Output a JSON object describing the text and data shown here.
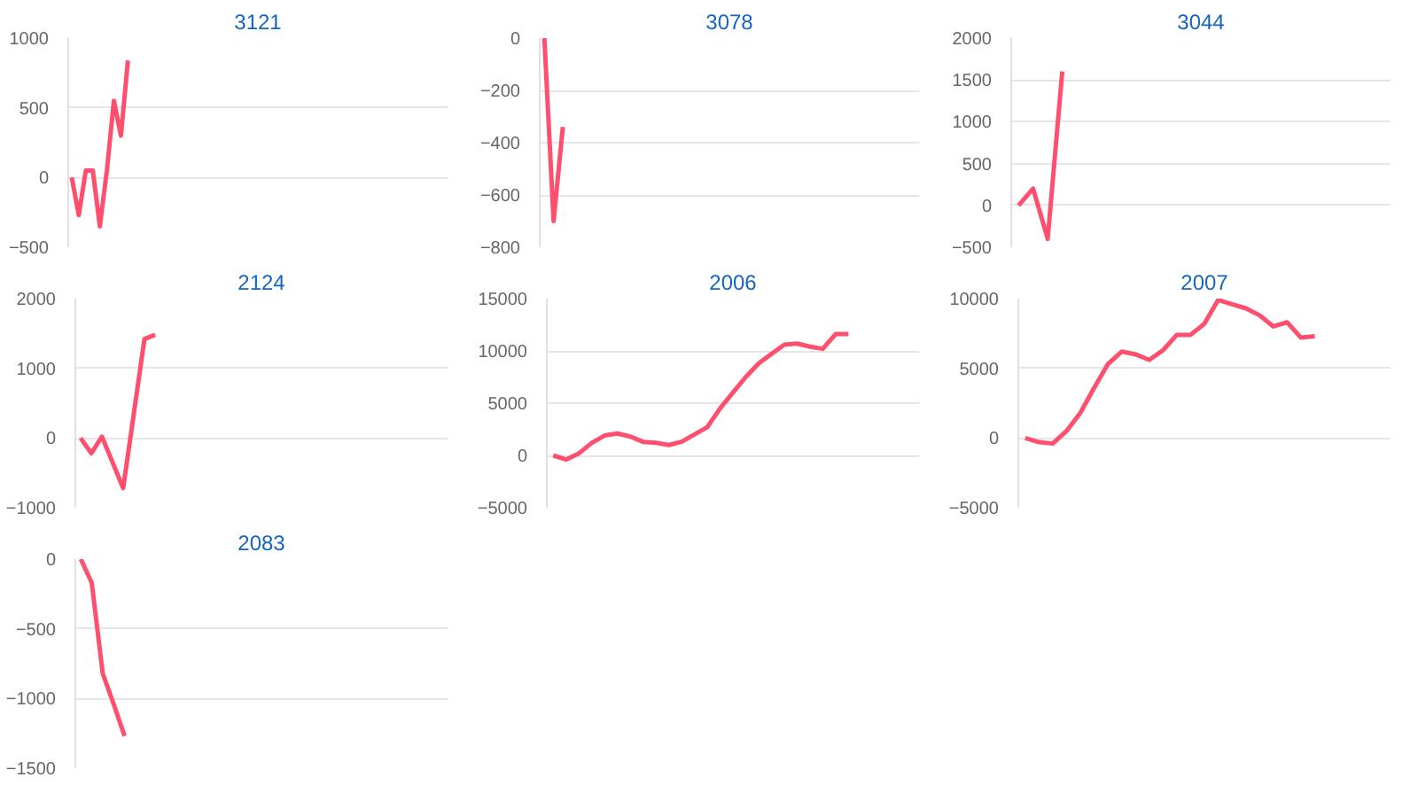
{
  "chart_data": [
    {
      "type": "line",
      "title": "3121",
      "categories": [
        null,
        null,
        null,
        null,
        null,
        null,
        null,
        null,
        null,
        null,
        null,
        null,
        null,
        null,
        null,
        null,
        null,
        null,
        null,
        null,
        null,
        null,
        null,
        null,
        null,
        null,
        null,
        null,
        null,
        null,
        null,
        null,
        null,
        null,
        null,
        null,
        null,
        null,
        null,
        null,
        null,
        null,
        null,
        null,
        null,
        null,
        null,
        null,
        null,
        null,
        null,
        null,
        null,
        null
      ],
      "series": [
        {
          "color": "#ff4f6e",
          "values": [
            0,
            -270,
            50,
            50,
            -350,
            50,
            550,
            300,
            840,
            null,
            null,
            null,
            null,
            null,
            null,
            null,
            null,
            null,
            null,
            null,
            null,
            null,
            null,
            null,
            null,
            null,
            null,
            null,
            null,
            null,
            null,
            null,
            null,
            null,
            null,
            null,
            null,
            null,
            null,
            null,
            null,
            null,
            null,
            null,
            null,
            null,
            null,
            null,
            null,
            null,
            null,
            null,
            null,
            null
          ]
        }
      ],
      "ylim": [
        -500,
        1000
      ],
      "yticks": [
        -500,
        0,
        500,
        1000
      ],
      "grid": "y",
      "tick_labels": "y"
    },
    {
      "type": "line",
      "title": "3078",
      "categories": [
        null,
        null,
        null,
        null,
        null,
        null,
        null,
        null,
        null,
        null,
        null,
        null,
        null,
        null,
        null,
        null,
        null,
        null,
        null,
        null,
        null,
        null,
        null,
        null,
        null,
        null,
        null,
        null,
        null,
        null,
        null,
        null,
        null,
        null,
        null,
        null,
        null,
        null,
        null,
        null,
        null
      ],
      "series": [
        {
          "color": "#ff4f6e",
          "values": [
            0,
            -700,
            -340,
            null,
            null,
            null,
            null,
            null,
            null,
            null,
            null,
            null,
            null,
            null,
            null,
            null,
            null,
            null,
            null,
            null,
            null,
            null,
            null,
            null,
            null,
            null,
            null,
            null,
            null,
            null,
            null,
            null,
            null,
            null,
            null,
            null,
            null,
            null,
            null,
            null,
            null
          ]
        }
      ],
      "ylim": [
        -800,
        0
      ],
      "yticks": [
        -800,
        -600,
        -400,
        -200,
        0
      ],
      "grid": "y",
      "tick_labels": "y"
    },
    {
      "type": "line",
      "title": "3044",
      "categories": [
        null,
        null,
        null,
        null,
        null,
        null,
        null,
        null,
        null,
        null,
        null,
        null,
        null,
        null,
        null,
        null,
        null,
        null,
        null,
        null,
        null,
        null,
        null,
        null,
        null,
        null
      ],
      "series": [
        {
          "color": "#ff4f6e",
          "values": [
            0,
            200,
            -400,
            1600,
            null,
            null,
            null,
            null,
            null,
            null,
            null,
            null,
            null,
            null,
            null,
            null,
            null,
            null,
            null,
            null,
            null,
            null,
            null,
            null,
            null,
            null
          ]
        }
      ],
      "ylim": [
        -500,
        2000
      ],
      "yticks": [
        -500,
        0,
        500,
        1000,
        1500,
        2000
      ],
      "grid": "y",
      "tick_labels": "y"
    },
    {
      "type": "line",
      "title": "2124",
      "categories": [
        null,
        null,
        null,
        null,
        null,
        null,
        null,
        null,
        null,
        null,
        null,
        null,
        null,
        null,
        null,
        null,
        null,
        null,
        null,
        null,
        null,
        null,
        null,
        null,
        null,
        null,
        null,
        null,
        null,
        null,
        null,
        null,
        null,
        null,
        null
      ],
      "series": [
        {
          "color": "#ff4f6e",
          "values": [
            0,
            -220,
            20,
            -350,
            -720,
            350,
            1420,
            1480,
            null,
            null,
            null,
            null,
            null,
            null,
            null,
            null,
            null,
            null,
            null,
            null,
            null,
            null,
            null,
            null,
            null,
            null,
            null,
            null,
            null,
            null,
            null,
            null,
            null,
            null,
            null
          ]
        }
      ],
      "ylim": [
        -1000,
        2000
      ],
      "yticks": [
        -1000,
        0,
        1000,
        2000
      ],
      "grid": "y",
      "tick_labels": "y"
    },
    {
      "type": "line",
      "title": "2006",
      "categories": [
        null,
        null,
        null,
        null,
        null,
        null,
        null,
        null,
        null,
        null,
        null,
        null,
        null,
        null,
        null,
        null,
        null,
        null,
        null,
        null,
        null,
        null,
        null,
        null,
        null,
        null,
        null,
        null,
        null
      ],
      "series": [
        {
          "color": "#ff4f6e",
          "values": [
            0,
            -400,
            200,
            1200,
            1900,
            2100,
            1800,
            1300,
            1200,
            1000,
            1300,
            2000,
            2700,
            4500,
            6000,
            7500,
            8800,
            9700,
            10600,
            10700,
            10400,
            10200,
            11600,
            11600,
            null,
            null,
            null,
            null,
            null
          ]
        }
      ],
      "ylim": [
        -5000,
        15000
      ],
      "yticks": [
        -5000,
        0,
        5000,
        10000,
        15000
      ],
      "grid": "y",
      "tick_labels": "y"
    },
    {
      "type": "line",
      "title": "2007",
      "categories": [
        null,
        null,
        null,
        null,
        null,
        null,
        null,
        null,
        null,
        null,
        null,
        null,
        null,
        null,
        null,
        null,
        null,
        null,
        null,
        null,
        null,
        null,
        null,
        null,
        null,
        null,
        null
      ],
      "series": [
        {
          "color": "#ff4f6e",
          "values": [
            0,
            -300,
            -400,
            500,
            1800,
            3600,
            5300,
            6200,
            6000,
            5600,
            6300,
            7400,
            7400,
            8200,
            9900,
            9600,
            9300,
            8800,
            8000,
            8300,
            7200,
            7300,
            null,
            null,
            null,
            null,
            null
          ]
        }
      ],
      "ylim": [
        -5000,
        10000
      ],
      "yticks": [
        -5000,
        0,
        5000,
        10000
      ],
      "grid": "y",
      "tick_labels": "y"
    },
    {
      "type": "line",
      "title": "2083",
      "categories": [
        null,
        null,
        null,
        null,
        null,
        null,
        null,
        null,
        null,
        null,
        null,
        null,
        null,
        null,
        null,
        null,
        null,
        null,
        null,
        null,
        null,
        null,
        null,
        null,
        null,
        null,
        null,
        null,
        null,
        null,
        null,
        null,
        null,
        null
      ],
      "series": [
        {
          "color": "#ff4f6e",
          "values": [
            0,
            -170,
            -820,
            -1040,
            -1270,
            null,
            null,
            null,
            null,
            null,
            null,
            null,
            null,
            null,
            null,
            null,
            null,
            null,
            null,
            null,
            null,
            null,
            null,
            null,
            null,
            null,
            null,
            null,
            null,
            null,
            null,
            null,
            null,
            null
          ]
        }
      ],
      "ylim": [
        -1500,
        0
      ],
      "yticks": [
        -1500,
        -1000,
        -500,
        0
      ],
      "grid": "y",
      "tick_labels": "y"
    }
  ]
}
